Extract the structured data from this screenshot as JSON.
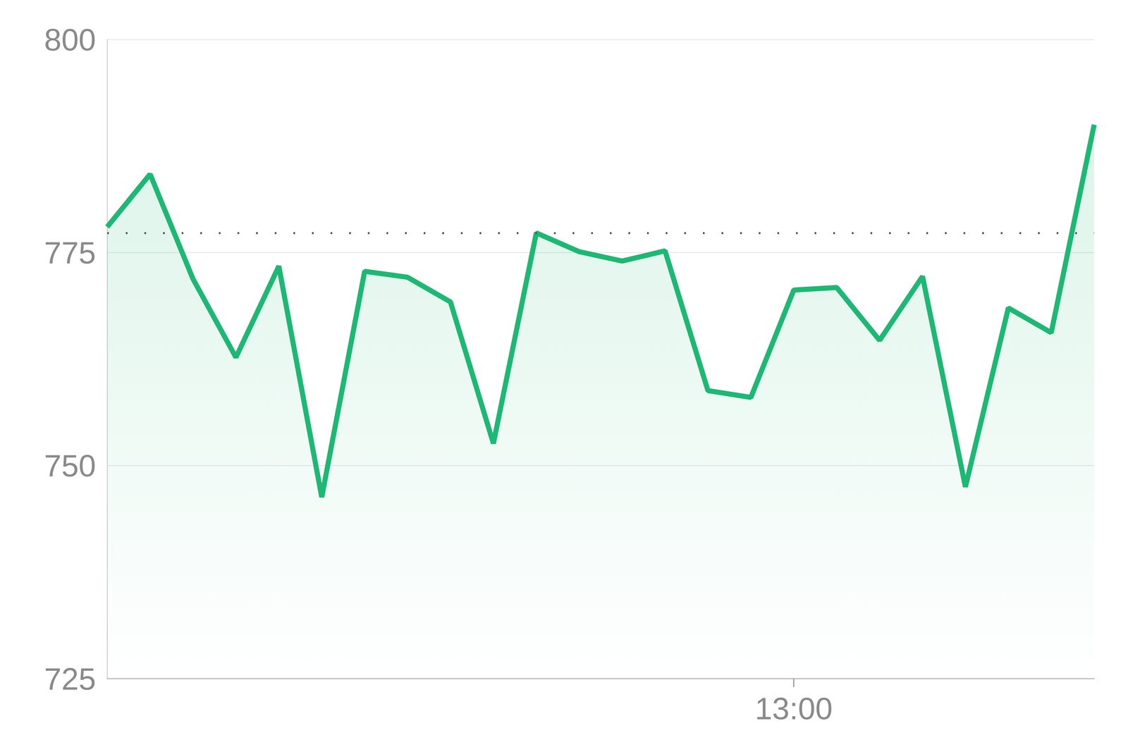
{
  "chart_data": {
    "type": "line",
    "color": "#1db874",
    "categories": [
      null,
      null,
      null,
      null,
      null,
      null,
      null,
      null,
      null,
      null,
      null,
      null,
      null,
      null,
      null,
      null,
      "13:00",
      null,
      null,
      null,
      null,
      null,
      null,
      null
    ],
    "values": [
      778.0,
      784.2,
      771.9,
      762.7,
      773.4,
      746.3,
      772.8,
      772.1,
      769.2,
      752.6,
      777.3,
      775.1,
      774.0,
      775.2,
      758.8,
      758.0,
      770.6,
      770.9,
      764.7,
      772.2,
      747.5,
      768.5,
      765.6,
      790.0
    ],
    "reference": 777.3,
    "ylim": [
      725,
      800
    ],
    "yticks": [
      725,
      750,
      775,
      800
    ],
    "grid": true
  }
}
